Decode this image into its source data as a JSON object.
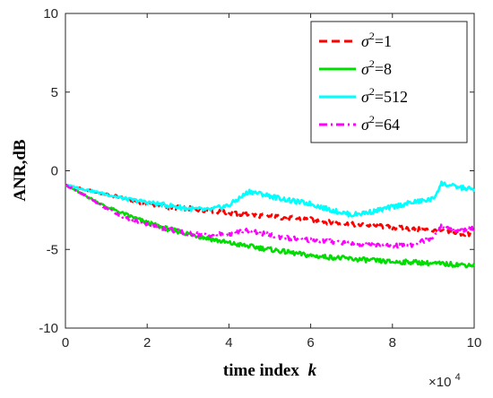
{
  "chart_data": {
    "type": "line",
    "xlabel": "time index",
    "xlabel_var": "k",
    "ylabel": "ANR,dB",
    "x_multiplier": "×10",
    "x_multiplier_exp": "4",
    "xlim": [
      0,
      100000
    ],
    "ylim": [
      -10,
      10
    ],
    "xticks": [
      0,
      20000,
      40000,
      60000,
      80000,
      100000
    ],
    "xtick_labels": [
      "0",
      "2",
      "4",
      "6",
      "8",
      "10"
    ],
    "yticks": [
      -10,
      -5,
      0,
      5,
      10
    ],
    "ytick_labels": [
      "-10",
      "-5",
      "0",
      "5",
      "10"
    ],
    "grid": false,
    "legend_position": "top-right",
    "series": [
      {
        "name": "σ²=1",
        "name_sym": "σ",
        "name_sup": "2",
        "name_rest": "=1",
        "color": "#ff0000",
        "dash": "dashed",
        "x": [
          0,
          5000,
          10000,
          15000,
          20000,
          25000,
          30000,
          35000,
          40000,
          45000,
          50000,
          55000,
          60000,
          65000,
          70000,
          75000,
          80000,
          85000,
          90000,
          95000,
          100000
        ],
        "y": [
          -0.9,
          -1.2,
          -1.5,
          -1.8,
          -2.1,
          -2.3,
          -2.4,
          -2.5,
          -2.7,
          -2.8,
          -2.9,
          -3.0,
          -3.1,
          -3.3,
          -3.4,
          -3.5,
          -3.6,
          -3.7,
          -3.8,
          -3.95,
          -4.1
        ]
      },
      {
        "name": "σ²=8",
        "name_sym": "σ",
        "name_sup": "2",
        "name_rest": "=8",
        "color": "#00dd00",
        "dash": "solid",
        "x": [
          0,
          5000,
          10000,
          15000,
          20000,
          25000,
          30000,
          35000,
          40000,
          45000,
          50000,
          55000,
          60000,
          65000,
          70000,
          75000,
          80000,
          85000,
          90000,
          95000,
          100000
        ],
        "y": [
          -0.9,
          -1.6,
          -2.3,
          -2.8,
          -3.3,
          -3.7,
          -4.0,
          -4.3,
          -4.6,
          -4.8,
          -5.0,
          -5.2,
          -5.4,
          -5.5,
          -5.6,
          -5.7,
          -5.8,
          -5.8,
          -5.9,
          -5.95,
          -6.0
        ]
      },
      {
        "name": "σ²=512",
        "name_sym": "σ",
        "name_sup": "2",
        "name_rest": "=512",
        "color": "#00ffff",
        "dash": "solid",
        "x": [
          0,
          5000,
          10000,
          15000,
          20000,
          25000,
          30000,
          35000,
          40000,
          45000,
          50000,
          55000,
          60000,
          65000,
          70000,
          75000,
          80000,
          85000,
          90000,
          92000,
          95000,
          100000
        ],
        "y": [
          -0.9,
          -1.2,
          -1.5,
          -1.8,
          -2.0,
          -2.2,
          -2.4,
          -2.5,
          -2.2,
          -1.3,
          -1.6,
          -1.9,
          -2.1,
          -2.5,
          -2.8,
          -2.6,
          -2.3,
          -2.0,
          -1.8,
          -0.8,
          -1.0,
          -1.2
        ]
      },
      {
        "name": "σ²=64",
        "name_sym": "σ",
        "name_sup": "2",
        "name_rest": "=64",
        "color": "#ff00ff",
        "dash": "dashdot",
        "x": [
          0,
          5000,
          10000,
          15000,
          20000,
          25000,
          30000,
          35000,
          40000,
          45000,
          50000,
          55000,
          60000,
          65000,
          70000,
          75000,
          80000,
          85000,
          90000,
          92000,
          95000,
          100000
        ],
        "y": [
          -0.9,
          -1.6,
          -2.4,
          -3.0,
          -3.4,
          -3.7,
          -4.0,
          -4.1,
          -4.0,
          -3.8,
          -4.1,
          -4.3,
          -4.4,
          -4.5,
          -4.6,
          -4.7,
          -4.8,
          -4.7,
          -4.2,
          -3.5,
          -3.8,
          -3.7
        ]
      }
    ]
  }
}
